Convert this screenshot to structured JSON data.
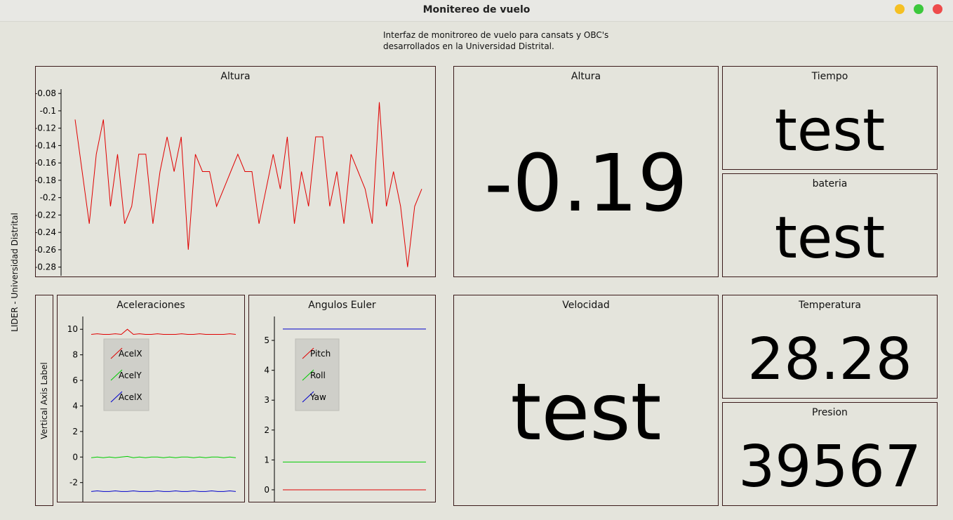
{
  "window": {
    "title": "Monitereo de vuelo"
  },
  "header": {
    "subtitle_line1": "Interfaz de monitroreo de vuelo para cansats y OBC's",
    "subtitle_line2": "desarrollados en la Universidad Distrital."
  },
  "side_label": "LIDER - Universidad Distrital",
  "vertical_axis_label": "Vertical Axis Label",
  "colors": {
    "red": "#e00000",
    "green": "#00cc00",
    "blue": "#0000cc",
    "panel_border": "#3a1a1a",
    "background": "#e4e4dc"
  },
  "displays": {
    "altura": {
      "title": "Altura",
      "value": "-0.19"
    },
    "tiempo": {
      "title": "Tiempo",
      "value": "test"
    },
    "bateria": {
      "title": "bateria",
      "value": "test"
    },
    "velocidad": {
      "title": "Velocidad",
      "value": "test"
    },
    "temperatura": {
      "title": "Temperatura",
      "value": "28.28"
    },
    "presion": {
      "title": "Presion",
      "value": "39567"
    }
  },
  "chart_data": [
    {
      "type": "line",
      "title": "Altura",
      "ylim": [
        -0.29,
        -0.075
      ],
      "yticks": [
        -0.08,
        -0.1,
        -0.12,
        -0.14,
        -0.16,
        -0.18,
        -0.2,
        -0.22,
        -0.24,
        -0.26,
        -0.28
      ],
      "series": [
        {
          "color": "#e00000",
          "values": [
            -0.11,
            -0.17,
            -0.23,
            -0.15,
            -0.11,
            -0.21,
            -0.15,
            -0.23,
            -0.21,
            -0.15,
            -0.15,
            -0.23,
            -0.17,
            -0.13,
            -0.17,
            -0.13,
            -0.26,
            -0.15,
            -0.17,
            -0.17,
            -0.21,
            -0.19,
            -0.17,
            -0.15,
            -0.17,
            -0.17,
            -0.23,
            -0.19,
            -0.15,
            -0.19,
            -0.13,
            -0.23,
            -0.17,
            -0.21,
            -0.13,
            -0.13,
            -0.21,
            -0.17,
            -0.23,
            -0.15,
            -0.17,
            -0.19,
            -0.23,
            -0.09,
            -0.21,
            -0.17,
            -0.21,
            -0.28,
            -0.21,
            -0.19
          ]
        }
      ]
    },
    {
      "type": "line",
      "title": "Aceleraciones",
      "ylim": [
        -3.5,
        11
      ],
      "yticks": [
        10,
        8,
        6,
        4,
        2,
        0,
        -2
      ],
      "legend": "top-left",
      "series": [
        {
          "name": "AcelX",
          "color": "#e00000",
          "values": [
            9.6,
            9.65,
            9.6,
            9.6,
            9.65,
            9.6,
            10.0,
            9.6,
            9.65,
            9.6,
            9.6,
            9.65,
            9.6,
            9.6,
            9.6,
            9.65,
            9.6,
            9.6,
            9.65,
            9.6,
            9.6,
            9.6,
            9.6,
            9.65,
            9.6
          ]
        },
        {
          "name": "AcelY",
          "color": "#00cc00",
          "values": [
            -0.05,
            0,
            -0.05,
            0,
            -0.05,
            0,
            0.05,
            -0.05,
            0,
            -0.05,
            0,
            0,
            -0.05,
            0,
            -0.05,
            0,
            0,
            -0.05,
            0,
            -0.05,
            0,
            0,
            -0.05,
            0,
            -0.05
          ]
        },
        {
          "name": "AcelX",
          "color": "#0000cc",
          "values": [
            -2.7,
            -2.65,
            -2.7,
            -2.7,
            -2.65,
            -2.7,
            -2.7,
            -2.65,
            -2.7,
            -2.7,
            -2.7,
            -2.65,
            -2.7,
            -2.7,
            -2.65,
            -2.7,
            -2.7,
            -2.65,
            -2.7,
            -2.7,
            -2.65,
            -2.7,
            -2.7,
            -2.65,
            -2.7
          ]
        }
      ]
    },
    {
      "type": "line",
      "title": "Angulos Euler",
      "ylim": [
        -0.4,
        5.8
      ],
      "yticks": [
        5,
        4,
        3,
        2,
        1,
        0
      ],
      "legend": "top-left",
      "series": [
        {
          "name": "Pitch",
          "color": "#e00000",
          "values": [
            0,
            0
          ]
        },
        {
          "name": "Roll",
          "color": "#00cc00",
          "values": [
            0.93,
            0.93
          ]
        },
        {
          "name": "Yaw",
          "color": "#0000cc",
          "values": [
            5.38,
            5.38
          ]
        }
      ]
    }
  ]
}
